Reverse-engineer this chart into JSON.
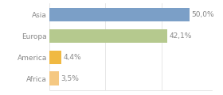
{
  "categories": [
    "Asia",
    "Europa",
    "America",
    "Africa"
  ],
  "values": [
    50.0,
    42.1,
    4.4,
    3.5
  ],
  "bar_colors": [
    "#7b9fc7",
    "#b5c98e",
    "#f0b942",
    "#f5c882"
  ],
  "labels": [
    "50,0%",
    "42,1%",
    "4,4%",
    "3,5%"
  ],
  "xlim": [
    0,
    58
  ],
  "background_color": "#ffffff",
  "text_color": "#888888",
  "bar_height": 0.65,
  "label_fontsize": 6.5,
  "tick_fontsize": 6.5,
  "grid_color": "#dddddd"
}
